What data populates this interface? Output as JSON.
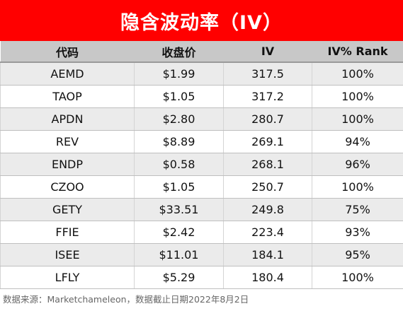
{
  "title": "隐含波动率（IV）",
  "columns": [
    "代码",
    "收盘价",
    "IV",
    "IV% Rank"
  ],
  "rows": [
    [
      "AEMD",
      "$1.99",
      "317.5",
      "100%"
    ],
    [
      "TAOP",
      "$1.05",
      "317.2",
      "100%"
    ],
    [
      "APDN",
      "$2.80",
      "280.7",
      "100%"
    ],
    [
      "REV",
      "$8.89",
      "269.1",
      "94%"
    ],
    [
      "ENDP",
      "$0.58",
      "268.1",
      "96%"
    ],
    [
      "CZOO",
      "$1.05",
      "250.7",
      "100%"
    ],
    [
      "GETY",
      "$33.51",
      "249.8",
      "75%"
    ],
    [
      "FFIE",
      "$2.42",
      "223.4",
      "93%"
    ],
    [
      "ISEE",
      "$11.01",
      "184.1",
      "95%"
    ],
    [
      "LFLY",
      "$5.29",
      "180.4",
      "100%"
    ]
  ],
  "footer": "数据来源：Marketchameleon，数据截止日期2022年8月2日",
  "colors": {
    "title_bg": "#ff0000",
    "title_text": "#ffffff",
    "header_bg": "#c8c8c8",
    "stripe_bg": "#ebebeb"
  }
}
